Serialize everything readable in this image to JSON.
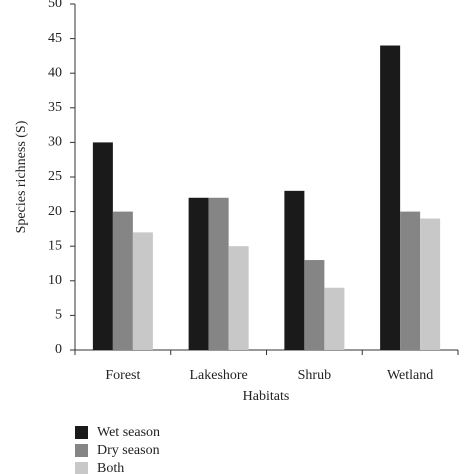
{
  "chart_data": {
    "type": "bar",
    "y_label": "Species richness (S)",
    "x_label": "Habitats",
    "categories": [
      "Forest",
      "Lakeshore",
      "Shrub",
      "Wetland"
    ],
    "series": [
      {
        "name": "Wet season",
        "color": "#1a1a1a",
        "values": [
          30,
          22,
          23,
          44
        ]
      },
      {
        "name": "Dry season",
        "color": "#858585",
        "values": [
          20,
          22,
          13,
          20
        ]
      },
      {
        "name": "Both",
        "color": "#c8c8c8",
        "values": [
          17,
          15,
          9,
          19
        ]
      }
    ],
    "ylim": [
      0,
      50
    ],
    "yticks": [
      0,
      5,
      10,
      15,
      20,
      25,
      30,
      35,
      40,
      45,
      50
    ],
    "legend": "bottom-left"
  }
}
